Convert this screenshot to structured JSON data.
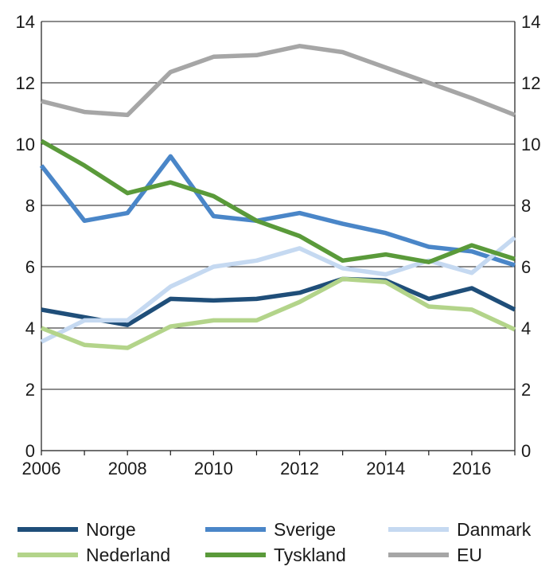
{
  "chart_data": {
    "type": "line",
    "title": "",
    "xlabel": "",
    "ylabel": "",
    "xlim": [
      2006,
      2017
    ],
    "ylim": [
      0,
      14
    ],
    "x_ticks": [
      2006,
      2008,
      2010,
      2012,
      2014,
      2016
    ],
    "y_ticks": [
      0,
      2,
      4,
      6,
      8,
      10,
      12,
      14
    ],
    "x_tick_labels": [
      "2006",
      "2008",
      "2010",
      "2012",
      "2014",
      "2016"
    ],
    "y_tick_labels": [
      "0",
      "2",
      "4",
      "6",
      "8",
      "10",
      "12",
      "14"
    ],
    "grid": "horizontal",
    "dual_y_axis": true,
    "x": [
      2006,
      2007,
      2008,
      2009,
      2010,
      2011,
      2012,
      2013,
      2014,
      2015,
      2016,
      2017
    ],
    "series": [
      {
        "name": "Norge",
        "color": "#1f4e79",
        "values": [
          4.6,
          4.35,
          4.1,
          4.95,
          4.9,
          4.95,
          5.15,
          5.6,
          5.55,
          4.95,
          5.3,
          4.6
        ]
      },
      {
        "name": "Sverige",
        "color": "#4a86c8",
        "values": [
          9.3,
          7.5,
          7.75,
          9.6,
          7.65,
          7.5,
          7.75,
          7.4,
          7.1,
          6.65,
          6.5,
          6.05
        ]
      },
      {
        "name": "Danmark",
        "color": "#c5d9f1",
        "values": [
          3.55,
          4.25,
          4.25,
          5.35,
          6.0,
          6.2,
          6.6,
          5.95,
          5.75,
          6.2,
          5.8,
          6.95
        ]
      },
      {
        "name": "Nederland",
        "color": "#b3d48a",
        "values": [
          4.0,
          3.45,
          3.35,
          4.05,
          4.25,
          4.25,
          4.85,
          5.6,
          5.5,
          4.7,
          4.6,
          3.95
        ]
      },
      {
        "name": "Tyskland",
        "color": "#5a9a3a",
        "values": [
          10.1,
          9.3,
          8.4,
          8.75,
          8.3,
          7.5,
          7.0,
          6.2,
          6.4,
          6.15,
          6.7,
          6.25
        ]
      },
      {
        "name": "EU",
        "color": "#a6a6a6",
        "values": [
          11.4,
          11.05,
          10.95,
          12.35,
          12.85,
          12.9,
          13.2,
          13.0,
          12.5,
          12.0,
          11.5,
          10.95
        ]
      }
    ],
    "legend": "bottom"
  }
}
